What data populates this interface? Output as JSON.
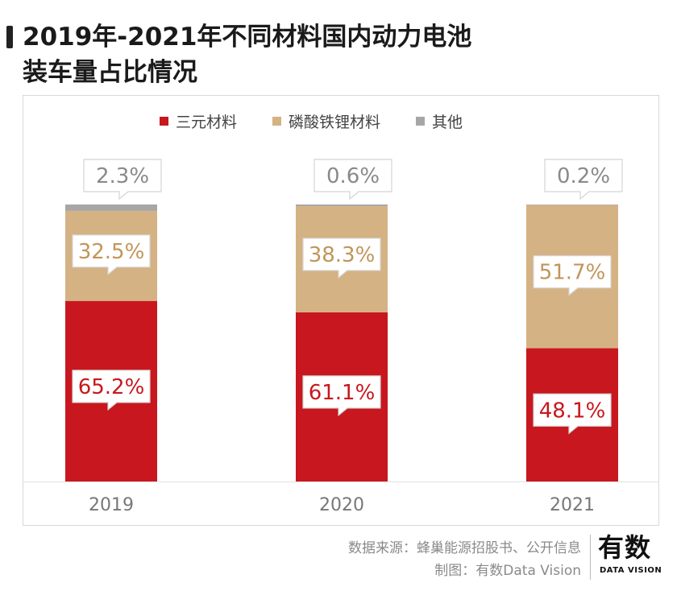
{
  "header": {
    "title_line1": "2019年-2021年不同材料国内动力电池",
    "title_line2": "装车量占比情况"
  },
  "legend": [
    {
      "label": "三元材料",
      "color": "#c8171e"
    },
    {
      "label": "磷酸铁锂材料",
      "color": "#d5b283"
    },
    {
      "label": "其他",
      "color": "#a6a6a6"
    }
  ],
  "chart_data": {
    "type": "bar",
    "stacked": true,
    "categories": [
      "2019",
      "2020",
      "2021"
    ],
    "series": [
      {
        "name": "三元材料",
        "values": [
          65.2,
          61.1,
          48.1
        ],
        "labels": [
          "65.2%",
          "61.1%",
          "48.1%"
        ],
        "color": "#c8171e"
      },
      {
        "name": "磷酸铁锂材料",
        "values": [
          32.5,
          38.3,
          51.7
        ],
        "labels": [
          "32.5%",
          "38.3%",
          "51.7%"
        ],
        "color": "#d5b283"
      },
      {
        "name": "其他",
        "values": [
          2.3,
          0.6,
          0.2
        ],
        "labels": [
          "2.3%",
          "0.6%",
          "0.2%"
        ],
        "color": "#a6a6a6"
      }
    ],
    "ylim": [
      0,
      100
    ],
    "grid": false,
    "legend_position": "top"
  },
  "footer": {
    "source": "数据来源：蜂巢能源招股书、公开信息",
    "credit": "制图：有数Data Vision"
  },
  "logo": {
    "name_cn": "有数",
    "name_en": "DATA VISION"
  }
}
